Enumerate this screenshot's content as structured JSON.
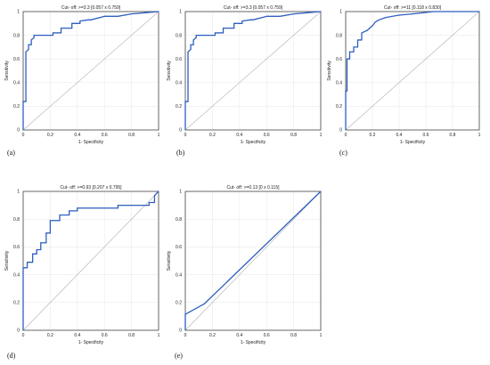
{
  "chart_data": [
    {
      "type": "line",
      "panel_label": "(a)",
      "title": "Cut- off: >=3.3 [0.057 x 0.759]",
      "xlabel": "1- Specificity",
      "ylabel": "Sensitivity",
      "xlim": [
        0,
        1
      ],
      "ylim": [
        0,
        1
      ],
      "x_ticks": [
        "0",
        "0.2",
        "0.4",
        "0.6",
        "0.8",
        "1"
      ],
      "y_ticks": [
        "0",
        "0.2",
        "0.4",
        "0.6",
        "0.8",
        "1"
      ],
      "grid": true,
      "reference_line": true,
      "x": [
        0,
        0,
        0.02,
        0.02,
        0.04,
        0.04,
        0.06,
        0.06,
        0.08,
        0.08,
        0.1,
        0.22,
        0.22,
        0.28,
        0.28,
        0.34,
        0.36,
        0.36,
        0.42,
        0.42,
        0.48,
        0.5,
        0.6,
        0.7,
        0.8,
        0.9,
        1
      ],
      "y": [
        0,
        0.24,
        0.24,
        0.66,
        0.68,
        0.72,
        0.72,
        0.76,
        0.78,
        0.8,
        0.8,
        0.8,
        0.82,
        0.82,
        0.86,
        0.86,
        0.86,
        0.9,
        0.9,
        0.92,
        0.93,
        0.93,
        0.96,
        0.96,
        0.98,
        0.99,
        1.0
      ]
    },
    {
      "type": "line",
      "panel_label": "(b)",
      "title": "Cut- off: >=3.3 [0.057 x 0.759]",
      "xlabel": "1- Specificity",
      "ylabel": "Sensitivity",
      "xlim": [
        0,
        1
      ],
      "ylim": [
        0,
        1
      ],
      "x_ticks": [
        "0",
        "0.2",
        "0.4",
        "0.6",
        "0.8",
        "1"
      ],
      "y_ticks": [
        "0",
        "0.2",
        "0.4",
        "0.6",
        "0.8",
        "1"
      ],
      "grid": true,
      "reference_line": true,
      "x": [
        0,
        0,
        0.02,
        0.02,
        0.04,
        0.04,
        0.06,
        0.06,
        0.08,
        0.08,
        0.1,
        0.22,
        0.22,
        0.28,
        0.28,
        0.34,
        0.36,
        0.36,
        0.42,
        0.42,
        0.48,
        0.5,
        0.6,
        0.7,
        0.8,
        0.9,
        1
      ],
      "y": [
        0,
        0.24,
        0.24,
        0.66,
        0.68,
        0.72,
        0.72,
        0.76,
        0.78,
        0.8,
        0.8,
        0.8,
        0.82,
        0.82,
        0.86,
        0.86,
        0.86,
        0.9,
        0.9,
        0.92,
        0.93,
        0.93,
        0.96,
        0.96,
        0.98,
        0.99,
        1.0
      ]
    },
    {
      "type": "line",
      "panel_label": "(c)",
      "title": "Cut- off: >=11 [0.118 x 0.830]",
      "xlabel": "1- Specificity",
      "ylabel": "Sensitivity",
      "xlim": [
        0,
        1
      ],
      "ylim": [
        0,
        1
      ],
      "x_ticks": [
        "0",
        "0.2",
        "0.4",
        "0.6",
        "0.8",
        "1"
      ],
      "y_ticks": [
        "0",
        "0.2",
        "0.4",
        "0.6",
        "0.8",
        "1"
      ],
      "grid": true,
      "reference_line": true,
      "x": [
        0,
        0,
        0.01,
        0.01,
        0.03,
        0.03,
        0.06,
        0.06,
        0.09,
        0.09,
        0.12,
        0.12,
        0.16,
        0.18,
        0.2,
        0.22,
        0.25,
        0.3,
        0.4,
        0.5,
        0.66,
        0.8,
        1
      ],
      "y": [
        0,
        0.33,
        0.33,
        0.6,
        0.6,
        0.66,
        0.66,
        0.7,
        0.7,
        0.76,
        0.76,
        0.82,
        0.84,
        0.86,
        0.88,
        0.91,
        0.93,
        0.95,
        0.97,
        0.98,
        1.0,
        1.0,
        1.0
      ]
    },
    {
      "type": "line",
      "panel_label": "(d)",
      "title": "Cut- off: >=0.93 [0.207 x 0.795]",
      "xlabel": "1- Specificity",
      "ylabel": "Sensitivity",
      "xlim": [
        0,
        1
      ],
      "ylim": [
        0,
        1
      ],
      "x_ticks": [
        "0",
        "0.2",
        "0.4",
        "0.6",
        "0.8",
        "1"
      ],
      "y_ticks": [
        "0",
        "0.2",
        "0.4",
        "0.6",
        "0.8",
        "1"
      ],
      "grid": true,
      "reference_line": true,
      "x": [
        0,
        0,
        0.03,
        0.03,
        0.07,
        0.07,
        0.1,
        0.1,
        0.13,
        0.13,
        0.17,
        0.17,
        0.2,
        0.2,
        0.27,
        0.27,
        0.34,
        0.34,
        0.4,
        0.4,
        0.7,
        0.7,
        0.93,
        0.93,
        0.97,
        0.97,
        1
      ],
      "y": [
        0,
        0.45,
        0.45,
        0.49,
        0.49,
        0.55,
        0.55,
        0.58,
        0.58,
        0.63,
        0.63,
        0.7,
        0.7,
        0.79,
        0.79,
        0.83,
        0.83,
        0.86,
        0.86,
        0.88,
        0.88,
        0.9,
        0.9,
        0.92,
        0.92,
        0.97,
        1.0
      ]
    },
    {
      "type": "line",
      "panel_label": "(e)",
      "title": "Cut- off: >=0.13 [0 x 0.115]",
      "xlabel": "1- Specificity",
      "ylabel": "Sensitivity",
      "xlim": [
        0,
        1
      ],
      "ylim": [
        0,
        1
      ],
      "x_ticks": [
        "0",
        "0.2",
        "0.4",
        "0.6",
        "0.8",
        "1"
      ],
      "y_ticks": [
        "0",
        "0.2",
        "0.4",
        "0.6",
        "0.8",
        "1"
      ],
      "grid": true,
      "reference_line": true,
      "x": [
        0,
        0,
        0.14,
        1
      ],
      "y": [
        0,
        0.115,
        0.19,
        1.0
      ]
    }
  ]
}
